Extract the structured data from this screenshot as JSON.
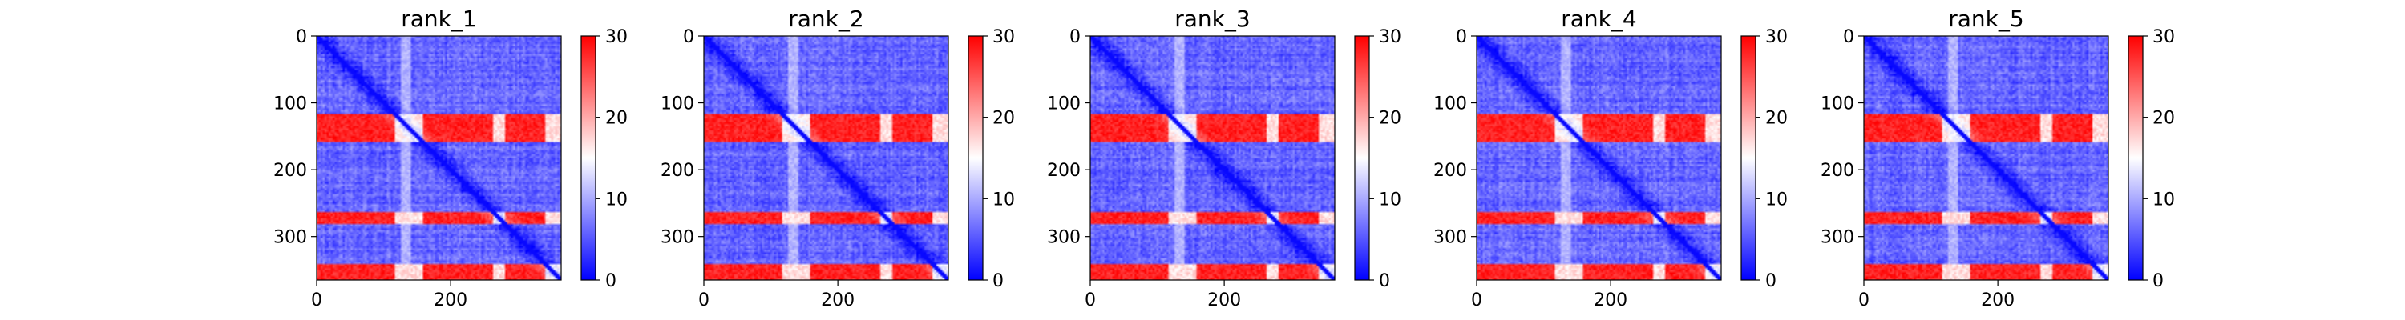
{
  "figure": {
    "colormap": {
      "low": "#0000ff",
      "mid": "#ffffff",
      "high": "#ff0000"
    }
  },
  "chart_data": [
    {
      "type": "heatmap",
      "title": "rank_1",
      "xlabel": "",
      "ylabel": "",
      "xlim": [
        0,
        365
      ],
      "ylim": [
        365,
        0
      ],
      "xticks": [
        "0",
        "200"
      ],
      "yticks": [
        "0",
        "100",
        "200",
        "300"
      ],
      "colorbar": {
        "range": [
          0,
          30
        ],
        "ticks": [
          "0",
          "10",
          "20",
          "30"
        ]
      },
      "matrix_size": 365,
      "high_distance_bands_rows": [
        [
          118,
          158
        ],
        [
          262,
          282
        ],
        [
          340,
          365
        ]
      ],
      "high_distance_bands_cols": [
        [
          118,
          158
        ],
        [
          262,
          282
        ],
        [
          340,
          365
        ]
      ]
    },
    {
      "type": "heatmap",
      "title": "rank_2",
      "xlabel": "",
      "ylabel": "",
      "xlim": [
        0,
        365
      ],
      "ylim": [
        365,
        0
      ],
      "xticks": [
        "0",
        "200"
      ],
      "yticks": [
        "0",
        "100",
        "200",
        "300"
      ],
      "colorbar": {
        "range": [
          0,
          30
        ],
        "ticks": [
          "0",
          "10",
          "20",
          "30"
        ]
      },
      "matrix_size": 365,
      "high_distance_bands_rows": [
        [
          118,
          158
        ],
        [
          262,
          282
        ],
        [
          340,
          365
        ]
      ],
      "high_distance_bands_cols": [
        [
          118,
          158
        ],
        [
          262,
          282
        ],
        [
          340,
          365
        ]
      ]
    },
    {
      "type": "heatmap",
      "title": "rank_3",
      "xlabel": "",
      "ylabel": "",
      "xlim": [
        0,
        365
      ],
      "ylim": [
        365,
        0
      ],
      "xticks": [
        "0",
        "200"
      ],
      "yticks": [
        "0",
        "100",
        "200",
        "300"
      ],
      "colorbar": {
        "range": [
          0,
          30
        ],
        "ticks": [
          "0",
          "10",
          "20",
          "30"
        ]
      },
      "matrix_size": 365,
      "high_distance_bands_rows": [
        [
          118,
          158
        ],
        [
          262,
          282
        ],
        [
          340,
          365
        ]
      ],
      "high_distance_bands_cols": [
        [
          118,
          158
        ],
        [
          262,
          282
        ],
        [
          340,
          365
        ]
      ]
    },
    {
      "type": "heatmap",
      "title": "rank_4",
      "xlabel": "",
      "ylabel": "",
      "xlim": [
        0,
        365
      ],
      "ylim": [
        365,
        0
      ],
      "xticks": [
        "0",
        "200"
      ],
      "yticks": [
        "0",
        "100",
        "200",
        "300"
      ],
      "colorbar": {
        "range": [
          0,
          30
        ],
        "ticks": [
          "0",
          "10",
          "20",
          "30"
        ]
      },
      "matrix_size": 365,
      "high_distance_bands_rows": [
        [
          118,
          158
        ],
        [
          262,
          282
        ],
        [
          340,
          365
        ]
      ],
      "high_distance_bands_cols": [
        [
          118,
          158
        ],
        [
          262,
          282
        ],
        [
          340,
          365
        ]
      ]
    },
    {
      "type": "heatmap",
      "title": "rank_5",
      "xlabel": "",
      "ylabel": "",
      "xlim": [
        0,
        365
      ],
      "ylim": [
        365,
        0
      ],
      "xticks": [
        "0",
        "200"
      ],
      "yticks": [
        "0",
        "100",
        "200",
        "300"
      ],
      "colorbar": {
        "range": [
          0,
          30
        ],
        "ticks": [
          "0",
          "10",
          "20",
          "30"
        ]
      },
      "matrix_size": 365,
      "high_distance_bands_rows": [
        [
          118,
          158
        ],
        [
          262,
          282
        ],
        [
          340,
          365
        ]
      ],
      "high_distance_bands_cols": [
        [
          118,
          158
        ],
        [
          262,
          282
        ],
        [
          340,
          365
        ]
      ]
    }
  ]
}
